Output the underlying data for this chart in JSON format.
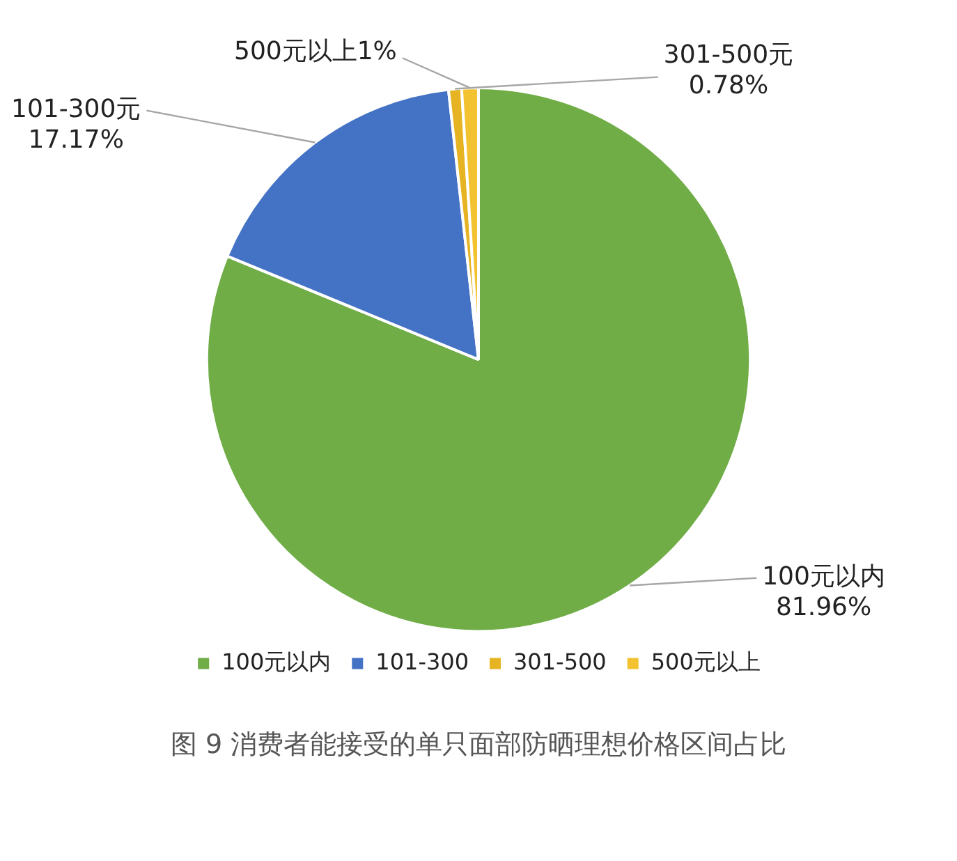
{
  "chart_data": {
    "type": "pie",
    "title": "图 9 消费者能接受的单只面部防晒理想价格区间占比",
    "categories": [
      "100元以内",
      "101-300",
      "301-500",
      "500元以上"
    ],
    "values": [
      81.96,
      17.17,
      0.78,
      1
    ],
    "colors": [
      "#70ad47",
      "#4472c4",
      "#e6b422",
      "#f2c230"
    ],
    "value_labels": [
      "100元以内\n81.96%",
      "101-300元\n17.17%",
      "301-500元\n0.78%",
      "500元以上1%"
    ],
    "legend": "bottom"
  }
}
